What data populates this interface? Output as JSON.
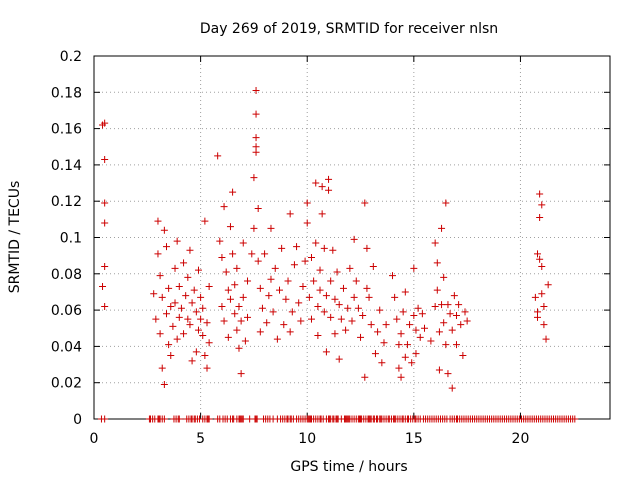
{
  "chart_data": {
    "type": "scatter",
    "title": "Day 269 of 2019, SRMTID for receiver nlsn",
    "xlabel": "GPS time / hours",
    "ylabel": "SRMTID / TECUs",
    "xlim": [
      0,
      24.2
    ],
    "ylim": [
      0,
      0.2
    ],
    "xticks": [
      0,
      5,
      10,
      15,
      20
    ],
    "yticks": [
      0,
      0.02,
      0.04,
      0.06,
      0.08,
      0.1,
      0.12,
      0.14,
      0.16,
      0.18,
      0.2
    ],
    "ytick_labels": [
      "0",
      "0.02",
      "0.04",
      "0.06",
      "0.08",
      "0.1",
      "0.12",
      "0.14",
      "0.16",
      "0.18",
      "0.2"
    ],
    "grid": true,
    "marker": "+",
    "color": "#cc0000",
    "series": [
      {
        "name": "SRMTID",
        "points": [
          [
            0.4,
            0.162
          ],
          [
            0.5,
            0.163
          ],
          [
            0.5,
            0.143
          ],
          [
            0.5,
            0.119
          ],
          [
            0.5,
            0.108
          ],
          [
            0.5,
            0.084
          ],
          [
            0.4,
            0.073
          ],
          [
            0.5,
            0.062
          ],
          [
            2.8,
            0.069
          ],
          [
            2.9,
            0.055
          ],
          [
            3.0,
            0.109
          ],
          [
            3.0,
            0.091
          ],
          [
            3.1,
            0.079
          ],
          [
            3.1,
            0.047
          ],
          [
            3.2,
            0.067
          ],
          [
            3.2,
            0.028
          ],
          [
            3.3,
            0.019
          ],
          [
            3.3,
            0.104
          ],
          [
            3.4,
            0.095
          ],
          [
            3.4,
            0.058
          ],
          [
            3.5,
            0.072
          ],
          [
            3.5,
            0.041
          ],
          [
            3.6,
            0.062
          ],
          [
            3.6,
            0.035
          ],
          [
            3.7,
            0.051
          ],
          [
            3.8,
            0.083
          ],
          [
            3.8,
            0.064
          ],
          [
            3.9,
            0.098
          ],
          [
            3.9,
            0.044
          ],
          [
            4.0,
            0.073
          ],
          [
            4.0,
            0.056
          ],
          [
            4.1,
            0.061
          ],
          [
            4.2,
            0.047
          ],
          [
            4.2,
            0.086
          ],
          [
            4.3,
            0.068
          ],
          [
            4.4,
            0.055
          ],
          [
            4.4,
            0.078
          ],
          [
            4.5,
            0.093
          ],
          [
            4.5,
            0.052
          ],
          [
            4.6,
            0.064
          ],
          [
            4.6,
            0.032
          ],
          [
            4.7,
            0.071
          ],
          [
            4.8,
            0.059
          ],
          [
            4.8,
            0.037
          ],
          [
            4.9,
            0.082
          ],
          [
            4.9,
            0.049
          ],
          [
            5.0,
            0.067
          ],
          [
            5.0,
            0.055
          ],
          [
            5.1,
            0.046
          ],
          [
            5.1,
            0.061
          ],
          [
            5.2,
            0.109
          ],
          [
            5.2,
            0.035
          ],
          [
            5.3,
            0.028
          ],
          [
            5.3,
            0.053
          ],
          [
            5.4,
            0.042
          ],
          [
            5.4,
            0.073
          ],
          [
            5.8,
            0.145
          ],
          [
            5.9,
            0.098
          ],
          [
            6.0,
            0.062
          ],
          [
            6.0,
            0.089
          ],
          [
            6.1,
            0.117
          ],
          [
            6.1,
            0.054
          ],
          [
            6.2,
            0.081
          ],
          [
            6.3,
            0.071
          ],
          [
            6.3,
            0.045
          ],
          [
            6.4,
            0.106
          ],
          [
            6.4,
            0.066
          ],
          [
            6.5,
            0.125
          ],
          [
            6.5,
            0.091
          ],
          [
            6.6,
            0.074
          ],
          [
            6.6,
            0.058
          ],
          [
            6.7,
            0.049
          ],
          [
            6.7,
            0.083
          ],
          [
            6.8,
            0.039
          ],
          [
            6.8,
            0.062
          ],
          [
            6.9,
            0.054
          ],
          [
            6.9,
            0.025
          ],
          [
            7.0,
            0.097
          ],
          [
            7.0,
            0.067
          ],
          [
            7.1,
            0.043
          ],
          [
            7.2,
            0.076
          ],
          [
            7.2,
            0.056
          ],
          [
            7.4,
            0.091
          ],
          [
            7.5,
            0.133
          ],
          [
            7.5,
            0.105
          ],
          [
            7.6,
            0.181
          ],
          [
            7.6,
            0.168
          ],
          [
            7.6,
            0.155
          ],
          [
            7.6,
            0.15
          ],
          [
            7.6,
            0.147
          ],
          [
            7.7,
            0.116
          ],
          [
            7.7,
            0.087
          ],
          [
            7.8,
            0.072
          ],
          [
            7.8,
            0.048
          ],
          [
            7.9,
            0.061
          ],
          [
            8.0,
            0.091
          ],
          [
            8.1,
            0.053
          ],
          [
            8.2,
            0.068
          ],
          [
            8.3,
            0.077
          ],
          [
            8.3,
            0.105
          ],
          [
            8.4,
            0.059
          ],
          [
            8.5,
            0.083
          ],
          [
            8.6,
            0.044
          ],
          [
            8.7,
            0.071
          ],
          [
            8.8,
            0.094
          ],
          [
            8.9,
            0.052
          ],
          [
            9.0,
            0.066
          ],
          [
            9.1,
            0.076
          ],
          [
            9.2,
            0.113
          ],
          [
            9.2,
            0.048
          ],
          [
            9.3,
            0.059
          ],
          [
            9.4,
            0.085
          ],
          [
            9.5,
            0.095
          ],
          [
            9.6,
            0.064
          ],
          [
            9.7,
            0.054
          ],
          [
            9.8,
            0.073
          ],
          [
            9.9,
            0.087
          ],
          [
            10.0,
            0.108
          ],
          [
            10.0,
            0.119
          ],
          [
            10.1,
            0.067
          ],
          [
            10.2,
            0.055
          ],
          [
            10.2,
            0.089
          ],
          [
            10.3,
            0.076
          ],
          [
            10.4,
            0.13
          ],
          [
            10.4,
            0.097
          ],
          [
            10.5,
            0.062
          ],
          [
            10.5,
            0.046
          ],
          [
            10.6,
            0.082
          ],
          [
            10.6,
            0.071
          ],
          [
            10.7,
            0.128
          ],
          [
            10.7,
            0.113
          ],
          [
            10.8,
            0.059
          ],
          [
            10.8,
            0.094
          ],
          [
            10.9,
            0.068
          ],
          [
            10.9,
            0.037
          ],
          [
            11.0,
            0.132
          ],
          [
            11.0,
            0.126
          ],
          [
            11.1,
            0.076
          ],
          [
            11.1,
            0.056
          ],
          [
            11.2,
            0.093
          ],
          [
            11.3,
            0.066
          ],
          [
            11.3,
            0.047
          ],
          [
            11.4,
            0.081
          ],
          [
            11.5,
            0.063
          ],
          [
            11.5,
            0.033
          ],
          [
            11.6,
            0.055
          ],
          [
            11.7,
            0.072
          ],
          [
            11.8,
            0.049
          ],
          [
            11.9,
            0.061
          ],
          [
            12.0,
            0.083
          ],
          [
            12.1,
            0.054
          ],
          [
            12.2,
            0.067
          ],
          [
            12.2,
            0.099
          ],
          [
            12.3,
            0.076
          ],
          [
            12.4,
            0.061
          ],
          [
            12.5,
            0.045
          ],
          [
            12.6,
            0.057
          ],
          [
            12.7,
            0.119
          ],
          [
            12.7,
            0.023
          ],
          [
            12.8,
            0.094
          ],
          [
            12.8,
            0.072
          ],
          [
            12.9,
            0.067
          ],
          [
            13.0,
            0.052
          ],
          [
            13.1,
            0.084
          ],
          [
            13.2,
            0.036
          ],
          [
            13.3,
            0.048
          ],
          [
            13.4,
            0.06
          ],
          [
            13.5,
            0.031
          ],
          [
            13.6,
            0.042
          ],
          [
            13.7,
            0.052
          ],
          [
            14.0,
            0.079
          ],
          [
            14.1,
            0.067
          ],
          [
            14.2,
            0.055
          ],
          [
            14.3,
            0.041
          ],
          [
            14.3,
            0.028
          ],
          [
            14.4,
            0.047
          ],
          [
            14.4,
            0.023
          ],
          [
            14.5,
            0.059
          ],
          [
            14.6,
            0.034
          ],
          [
            14.6,
            0.07
          ],
          [
            14.7,
            0.041
          ],
          [
            14.8,
            0.052
          ],
          [
            14.9,
            0.031
          ],
          [
            15.0,
            0.057
          ],
          [
            15.0,
            0.083
          ],
          [
            15.1,
            0.049
          ],
          [
            15.1,
            0.036
          ],
          [
            15.2,
            0.061
          ],
          [
            15.3,
            0.045
          ],
          [
            15.4,
            0.058
          ],
          [
            15.5,
            0.05
          ],
          [
            15.8,
            0.043
          ],
          [
            16.0,
            0.062
          ],
          [
            16.0,
            0.097
          ],
          [
            16.1,
            0.086
          ],
          [
            16.1,
            0.071
          ],
          [
            16.2,
            0.048
          ],
          [
            16.2,
            0.027
          ],
          [
            16.3,
            0.105
          ],
          [
            16.3,
            0.063
          ],
          [
            16.4,
            0.078
          ],
          [
            16.4,
            0.053
          ],
          [
            16.5,
            0.119
          ],
          [
            16.5,
            0.041
          ],
          [
            16.6,
            0.063
          ],
          [
            16.6,
            0.025
          ],
          [
            16.7,
            0.058
          ],
          [
            16.8,
            0.049
          ],
          [
            16.8,
            0.017
          ],
          [
            16.9,
            0.068
          ],
          [
            17.0,
            0.057
          ],
          [
            17.0,
            0.041
          ],
          [
            17.1,
            0.063
          ],
          [
            17.2,
            0.052
          ],
          [
            17.3,
            0.035
          ],
          [
            17.4,
            0.059
          ],
          [
            17.5,
            0.054
          ],
          [
            20.7,
            0.067
          ],
          [
            20.8,
            0.091
          ],
          [
            20.8,
            0.059
          ],
          [
            20.8,
            0.056
          ],
          [
            20.9,
            0.124
          ],
          [
            20.9,
            0.111
          ],
          [
            20.9,
            0.088
          ],
          [
            21.0,
            0.118
          ],
          [
            21.0,
            0.084
          ],
          [
            21.0,
            0.069
          ],
          [
            21.1,
            0.062
          ],
          [
            21.1,
            0.052
          ],
          [
            21.2,
            0.044
          ],
          [
            21.3,
            0.074
          ]
        ]
      }
    ],
    "zero_points_x": [
      0.35,
      0.5,
      2.6,
      2.65,
      2.75,
      2.85,
      3.0,
      3.05,
      3.1,
      3.2,
      3.3,
      3.75,
      3.85,
      3.95,
      4.0,
      4.35,
      4.45,
      4.55,
      4.6,
      4.7,
      4.75,
      4.85,
      4.95,
      5.1,
      5.2,
      5.3,
      5.35,
      5.4,
      5.8,
      5.9,
      6.05,
      6.15,
      6.25,
      6.4,
      6.5,
      6.55,
      6.7,
      6.8,
      6.85,
      6.9,
      6.95,
      7.0,
      7.3,
      7.55,
      7.6,
      7.65,
      7.95,
      8.05,
      8.15,
      8.25,
      8.4,
      8.6,
      8.75,
      8.85,
      8.95,
      9.05,
      9.1,
      9.2,
      9.25,
      9.35,
      9.5,
      9.6,
      9.7,
      9.8,
      9.9,
      10.0,
      10.05,
      10.1,
      10.15,
      10.2,
      10.3,
      10.4,
      10.5,
      10.6,
      10.65,
      10.75,
      10.9,
      11.0,
      11.05,
      11.1,
      11.2,
      11.25,
      11.35,
      11.4,
      11.45,
      11.6,
      11.75,
      11.8,
      11.85,
      11.9,
      11.95,
      12.0,
      12.1,
      12.2,
      12.3,
      12.4,
      12.45,
      12.5,
      12.55,
      12.65,
      12.75,
      12.85,
      12.9,
      12.95,
      13.0,
      13.1,
      13.15,
      13.25,
      13.3,
      13.4,
      13.45,
      13.5,
      13.6,
      13.7,
      13.8,
      13.85,
      13.95,
      14.05,
      14.1,
      14.15,
      14.25,
      14.35,
      14.45,
      14.5,
      14.6,
      14.7,
      14.75,
      14.85,
      14.95,
      15.05,
      15.1,
      15.2,
      15.3,
      15.45,
      15.55,
      15.65,
      15.75,
      15.85,
      15.95,
      16.05,
      16.15,
      16.25,
      16.35,
      16.45,
      16.55,
      16.7,
      16.8,
      16.9,
      17.0,
      17.05,
      17.15,
      17.25,
      17.35,
      17.45,
      17.55,
      17.65,
      17.75,
      17.85,
      17.95,
      18.05,
      18.15,
      18.25,
      18.35,
      18.45,
      18.55,
      18.65,
      18.75,
      18.85,
      18.95,
      19.05,
      19.15,
      19.25,
      19.35,
      19.45,
      19.55,
      19.65,
      19.75,
      19.85,
      19.95,
      20.05,
      20.15,
      20.25,
      20.35,
      20.45,
      20.55,
      20.65,
      20.75,
      20.85,
      20.95,
      21.05,
      21.15,
      21.25,
      21.35,
      21.45,
      21.55,
      21.65,
      21.75,
      21.85,
      21.95,
      22.05,
      22.15,
      22.25,
      22.35,
      22.45,
      22.55
    ]
  }
}
